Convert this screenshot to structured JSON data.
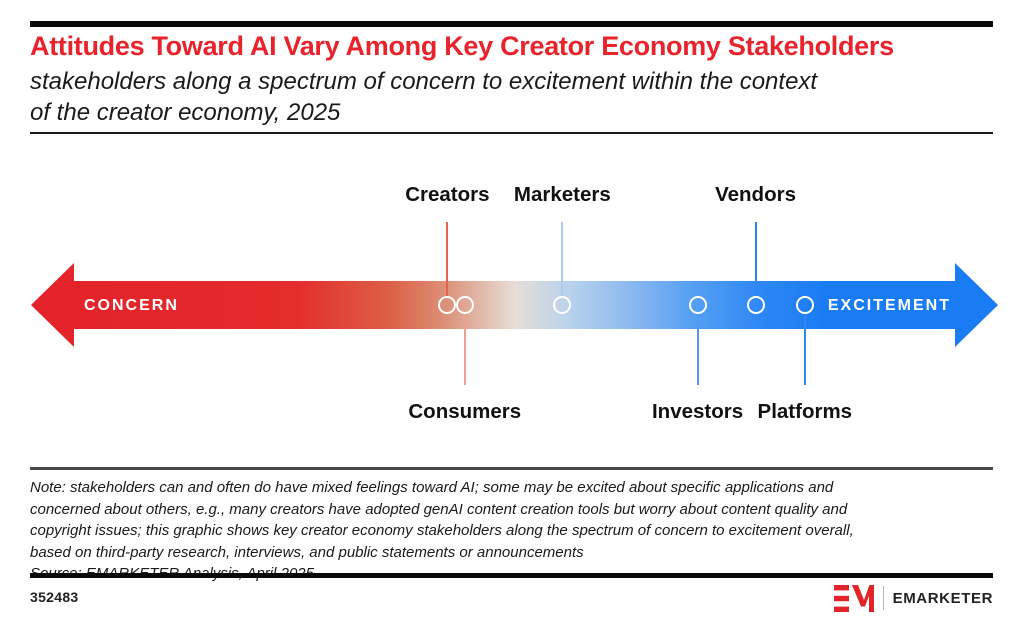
{
  "header": {
    "title": "Attitudes Toward AI Vary Among Key Creator Economy Stakeholders",
    "subtitle_line1": "stakeholders along a spectrum of concern to excitement within the context",
    "subtitle_line2": "of the creator economy, 2025"
  },
  "chart_data": {
    "type": "scatter",
    "title": "Attitudes Toward AI Vary Among Key Creator Economy Stakeholders",
    "subtitle": "stakeholders along a spectrum of concern to excitement within the context of the creator economy, 2025",
    "axis": {
      "style": "concern-to-excitement spectrum (double-headed gradient arrow)",
      "min_label": "CONCERN",
      "max_label": "EXCITEMENT",
      "range_pct": [
        0,
        100
      ],
      "grid": false
    },
    "points": [
      {
        "label": "Creators",
        "position_pct": 43.0,
        "label_side": "above",
        "connector_color": "#e0654c"
      },
      {
        "label": "Consumers",
        "position_pct": 44.8,
        "label_side": "below",
        "connector_color": "#eba195"
      },
      {
        "label": "Marketers",
        "position_pct": 54.9,
        "label_side": "above",
        "connector_color": "#aecdec"
      },
      {
        "label": "Investors",
        "position_pct": 68.9,
        "label_side": "below",
        "connector_color": "#4e9af5"
      },
      {
        "label": "Vendors",
        "position_pct": 74.9,
        "label_side": "above",
        "connector_color": "#2e87f4"
      },
      {
        "label": "Platforms",
        "position_pct": 80.0,
        "label_side": "below",
        "connector_color": "#2e87f4"
      }
    ]
  },
  "footer": {
    "note_lines": [
      "Note: stakeholders can and often do have mixed feelings toward AI; some may be excited about specific applications and",
      "concerned about others, e.g., many creators have adopted genAI content creation tools but worry about content quality and",
      "copyright issues; this graphic shows key creator economy stakeholders along the spectrum of concern to excitement overall,",
      "based on third-party research, interviews, and public statements or announcements",
      "Source: EMARKETER Analysis, April 2025"
    ],
    "chart_id": "352483",
    "brand_name": "EMARKETER",
    "brand_monogram": "EM"
  },
  "colors": {
    "title_red": "#e8232b",
    "concern_red": "#e4232b",
    "excitement_blue": "#1a7cf5",
    "brand_red": "#e0242a"
  }
}
